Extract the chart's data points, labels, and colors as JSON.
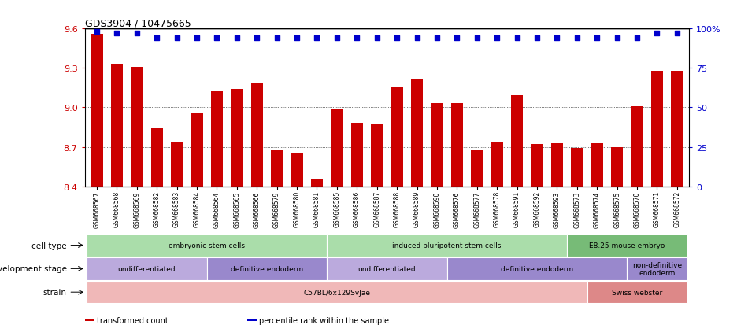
{
  "title": "GDS3904 / 10475665",
  "samples": [
    "GSM668567",
    "GSM668568",
    "GSM668569",
    "GSM668582",
    "GSM668583",
    "GSM668584",
    "GSM668564",
    "GSM668565",
    "GSM668566",
    "GSM668579",
    "GSM668580",
    "GSM668581",
    "GSM668585",
    "GSM668586",
    "GSM668587",
    "GSM668588",
    "GSM668589",
    "GSM668590",
    "GSM668576",
    "GSM668577",
    "GSM668578",
    "GSM668591",
    "GSM668592",
    "GSM668593",
    "GSM668573",
    "GSM668574",
    "GSM668575",
    "GSM668570",
    "GSM668571",
    "GSM668572"
  ],
  "bar_values": [
    9.56,
    9.33,
    9.31,
    8.84,
    8.74,
    8.96,
    9.12,
    9.14,
    9.18,
    8.68,
    8.65,
    8.46,
    8.99,
    8.88,
    8.87,
    9.16,
    9.21,
    9.03,
    9.03,
    8.68,
    8.74,
    9.09,
    8.72,
    8.73,
    8.69,
    8.73,
    8.7,
    9.01,
    9.28,
    9.28
  ],
  "percentile_values": [
    98,
    97,
    97,
    94,
    94,
    94,
    94,
    94,
    94,
    94,
    94,
    94,
    94,
    94,
    94,
    94,
    94,
    94,
    94,
    94,
    94,
    94,
    94,
    94,
    94,
    94,
    94,
    94,
    97,
    97
  ],
  "bar_color": "#cc0000",
  "percentile_color": "#0000cc",
  "ylim_left": [
    8.4,
    9.6
  ],
  "ylim_right": [
    0,
    100
  ],
  "yticks_left": [
    8.4,
    8.7,
    9.0,
    9.3,
    9.6
  ],
  "yticks_right": [
    0,
    25,
    50,
    75,
    100
  ],
  "ytick_labels_right": [
    "0",
    "25",
    "50",
    "75",
    "100%"
  ],
  "cell_type_groups": [
    {
      "label": "embryonic stem cells",
      "start": 0,
      "end": 11,
      "color": "#aaddaa"
    },
    {
      "label": "induced pluripotent stem cells",
      "start": 12,
      "end": 23,
      "color": "#aaddaa"
    },
    {
      "label": "E8.25 mouse embryo",
      "start": 24,
      "end": 29,
      "color": "#77bb77"
    }
  ],
  "dev_stage_groups": [
    {
      "label": "undifferentiated",
      "start": 0,
      "end": 5,
      "color": "#bbaadd"
    },
    {
      "label": "definitive endoderm",
      "start": 6,
      "end": 11,
      "color": "#9988cc"
    },
    {
      "label": "undifferentiated",
      "start": 12,
      "end": 17,
      "color": "#bbaadd"
    },
    {
      "label": "definitive endoderm",
      "start": 18,
      "end": 26,
      "color": "#9988cc"
    },
    {
      "label": "non-definitive\nendoderm",
      "start": 27,
      "end": 29,
      "color": "#9988cc"
    }
  ],
  "strain_groups": [
    {
      "label": "C57BL/6x129SvJae",
      "start": 0,
      "end": 24,
      "color": "#f0b8b8"
    },
    {
      "label": "Swiss webster",
      "start": 25,
      "end": 29,
      "color": "#dd8888"
    }
  ],
  "row_labels": [
    "cell type",
    "development stage",
    "strain"
  ],
  "legend_items": [
    {
      "color": "#cc0000",
      "label": "transformed count"
    },
    {
      "color": "#0000cc",
      "label": "percentile rank within the sample"
    }
  ]
}
